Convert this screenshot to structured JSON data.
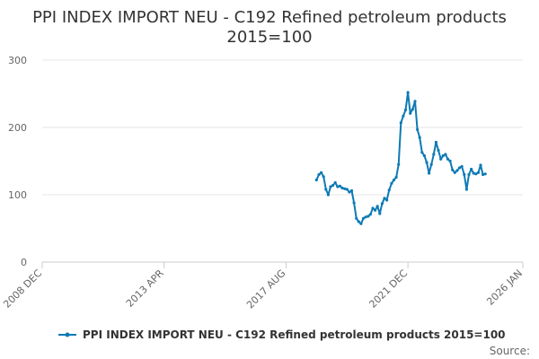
{
  "chart_data": {
    "type": "line",
    "title_line1": "PPI INDEX IMPORT NEU - C192 Refined petroleum products",
    "title_line2": "2015=100",
    "xlabel": "",
    "ylabel": "",
    "ylim": [
      0,
      300
    ],
    "yticks": [
      0,
      100,
      200,
      300
    ],
    "xlim": [
      "2008-12",
      "2026-01"
    ],
    "xticks": [
      {
        "date": "2008-12",
        "label": "2008 DEC"
      },
      {
        "date": "2013-04",
        "label": "2013 APR"
      },
      {
        "date": "2017-08",
        "label": "2017 AUG"
      },
      {
        "date": "2021-12",
        "label": "2021 DEC"
      },
      {
        "date": "2026-01",
        "label": "2026 JAN"
      }
    ],
    "grid": "horizontal",
    "legend_position": "bottom",
    "source_label": "Source:",
    "series": [
      {
        "name": "PPI INDEX IMPORT NEU - C192 Refined petroleum products 2015=100",
        "color": "#0d7ab5",
        "points": [
          [
            "2018-09",
            122
          ],
          [
            "2018-10",
            130
          ],
          [
            "2018-11",
            133
          ],
          [
            "2018-12",
            127
          ],
          [
            "2019-01",
            108
          ],
          [
            "2019-02",
            100
          ],
          [
            "2019-03",
            112
          ],
          [
            "2019-04",
            114
          ],
          [
            "2019-05",
            118
          ],
          [
            "2019-06",
            112
          ],
          [
            "2019-07",
            113
          ],
          [
            "2019-08",
            110
          ],
          [
            "2019-09",
            109
          ],
          [
            "2019-10",
            108
          ],
          [
            "2019-11",
            104
          ],
          [
            "2019-12",
            106
          ],
          [
            "2020-01",
            88
          ],
          [
            "2020-02",
            65
          ],
          [
            "2020-03",
            60
          ],
          [
            "2020-04",
            57
          ],
          [
            "2020-05",
            65
          ],
          [
            "2020-06",
            67
          ],
          [
            "2020-07",
            68
          ],
          [
            "2020-08",
            71
          ],
          [
            "2020-09",
            80
          ],
          [
            "2020-10",
            77
          ],
          [
            "2020-11",
            83
          ],
          [
            "2020-12",
            72
          ],
          [
            "2021-01",
            87
          ],
          [
            "2021-02",
            95
          ],
          [
            "2021-03",
            92
          ],
          [
            "2021-04",
            107
          ],
          [
            "2021-05",
            117
          ],
          [
            "2021-06",
            122
          ],
          [
            "2021-07",
            126
          ],
          [
            "2021-08",
            145
          ],
          [
            "2021-09",
            207
          ],
          [
            "2021-10",
            217
          ],
          [
            "2021-11",
            226
          ],
          [
            "2021-12",
            252
          ],
          [
            "2022-01",
            221
          ],
          [
            "2022-02",
            227
          ],
          [
            "2022-03",
            239
          ],
          [
            "2022-04",
            197
          ],
          [
            "2022-05",
            185
          ],
          [
            "2022-06",
            163
          ],
          [
            "2022-07",
            158
          ],
          [
            "2022-08",
            148
          ],
          [
            "2022-09",
            132
          ],
          [
            "2022-10",
            145
          ],
          [
            "2022-11",
            160
          ],
          [
            "2022-12",
            178
          ],
          [
            "2023-01",
            166
          ],
          [
            "2023-02",
            153
          ],
          [
            "2023-03",
            158
          ],
          [
            "2023-04",
            160
          ],
          [
            "2023-05",
            153
          ],
          [
            "2023-06",
            150
          ],
          [
            "2023-07",
            137
          ],
          [
            "2023-08",
            133
          ],
          [
            "2023-09",
            136
          ],
          [
            "2023-10",
            140
          ],
          [
            "2023-11",
            142
          ],
          [
            "2023-12",
            130
          ],
          [
            "2024-01",
            108
          ],
          [
            "2024-02",
            130
          ],
          [
            "2024-03",
            138
          ],
          [
            "2024-04",
            132
          ],
          [
            "2024-05",
            131
          ],
          [
            "2024-06",
            133
          ],
          [
            "2024-07",
            144
          ],
          [
            "2024-08",
            130
          ],
          [
            "2024-09",
            131
          ]
        ]
      }
    ]
  }
}
